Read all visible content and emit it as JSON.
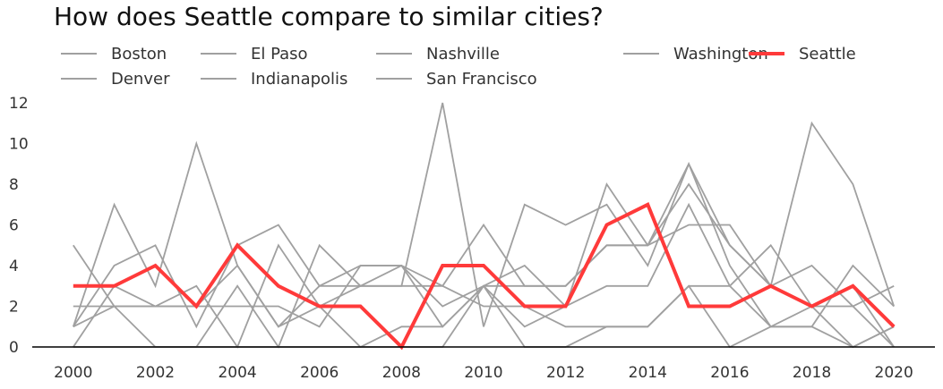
{
  "chart_data": {
    "type": "line",
    "title": "How does Seattle compare to similar cities?",
    "xlabel": "",
    "ylabel": "",
    "xlim": [
      1999,
      2021
    ],
    "ylim": [
      0,
      12
    ],
    "x": [
      2000,
      2001,
      2002,
      2003,
      2004,
      2005,
      2006,
      2007,
      2008,
      2009,
      2010,
      2011,
      2012,
      2013,
      2014,
      2015,
      2016,
      2017,
      2018,
      2019,
      2020
    ],
    "x_ticks": [
      "2000",
      "2002",
      "2004",
      "2006",
      "2008",
      "2010",
      "2012",
      "2014",
      "2016",
      "2018",
      "2020"
    ],
    "y_ticks": [
      "0",
      "2",
      "4",
      "6",
      "8",
      "10",
      "12"
    ],
    "legend_position": "top",
    "colors": {
      "comparison": "#a0a0a0",
      "highlight": "#ff3a3a",
      "axis": "#000000"
    },
    "highlight": "Seattle",
    "series": [
      {
        "name": "Boston",
        "values": [
          5,
          2,
          0,
          0,
          0,
          0,
          0,
          0,
          0,
          0,
          3,
          3,
          3,
          5,
          5,
          8,
          5,
          3,
          2,
          3,
          0
        ]
      },
      {
        "name": "Denver",
        "values": [
          1,
          7,
          3,
          10,
          4,
          1,
          3,
          4,
          4,
          3,
          6,
          3,
          3,
          5,
          5,
          9,
          4,
          1,
          1,
          0,
          1
        ]
      },
      {
        "name": "El Paso",
        "values": [
          0,
          0,
          0,
          0,
          3,
          0,
          5,
          3,
          3,
          12,
          1,
          7,
          6,
          7,
          4,
          9,
          5,
          3,
          11,
          8,
          2
        ]
      },
      {
        "name": "Indianapolis",
        "values": [
          1,
          4,
          5,
          1,
          5,
          6,
          3,
          3,
          4,
          2,
          3,
          4,
          2,
          8,
          5,
          6,
          6,
          3,
          4,
          2,
          3
        ]
      },
      {
        "name": "Nashville",
        "values": [
          2,
          2,
          2,
          2,
          2,
          2,
          1,
          4,
          4,
          1,
          3,
          0,
          0,
          1,
          1,
          3,
          3,
          5,
          2,
          0,
          1
        ]
      },
      {
        "name": "San Francisco",
        "values": [
          0,
          3,
          2,
          3,
          0,
          5,
          2,
          3,
          3,
          3,
          2,
          2,
          1,
          1,
          1,
          3,
          0,
          1,
          1,
          4,
          2
        ]
      },
      {
        "name": "Washington",
        "values": [
          1,
          2,
          2,
          2,
          4,
          1,
          2,
          0,
          1,
          1,
          3,
          1,
          2,
          3,
          3,
          7,
          3,
          1,
          2,
          2,
          0
        ]
      },
      {
        "name": "Seattle",
        "values": [
          3,
          3,
          4,
          2,
          5,
          3,
          2,
          2,
          0,
          4,
          4,
          2,
          2,
          6,
          7,
          2,
          2,
          3,
          2,
          3,
          1
        ]
      }
    ],
    "legend_order": [
      "Boston",
      "Denver",
      "El Paso",
      "Indianapolis",
      "Nashville",
      "San Francisco",
      "Washington",
      "Seattle"
    ]
  }
}
